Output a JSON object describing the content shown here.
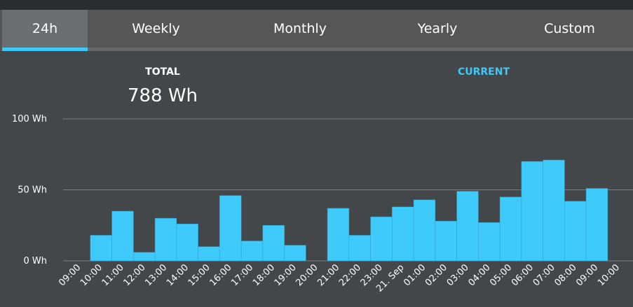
{
  "tabs": [
    "24h",
    "Weekly",
    "Monthly",
    "Yearly",
    "Custom"
  ],
  "summary": {
    "total_label": "TOTAL",
    "total_value": "788 Wh",
    "current_label": "CURRENT"
  },
  "chart_data": {
    "type": "bar",
    "color": "#3ecbfb",
    "categories": [
      "09:00",
      "10:00",
      "11:00",
      "12:00",
      "13:00",
      "14:00",
      "15:00",
      "16:00",
      "17:00",
      "18:00",
      "19:00",
      "20:00",
      "21:00",
      "22:00",
      "23:00",
      "21. Sep",
      "01:00",
      "02:00",
      "03:00",
      "04:00",
      "05:00",
      "06:00",
      "07:00",
      "08:00",
      "09:00",
      "10:00"
    ],
    "values": [
      null,
      18,
      35,
      6,
      30,
      26,
      10,
      46,
      14,
      25,
      11,
      null,
      37,
      18,
      31,
      38,
      43,
      28,
      49,
      27,
      45,
      70,
      71,
      42,
      51,
      null
    ],
    "ylim": [
      0,
      100
    ],
    "yticks": [
      {
        "value": 0,
        "label": "0 Wh"
      },
      {
        "value": 50,
        "label": "50 Wh"
      },
      {
        "value": 100,
        "label": "100 Wh"
      }
    ],
    "grid": true
  }
}
